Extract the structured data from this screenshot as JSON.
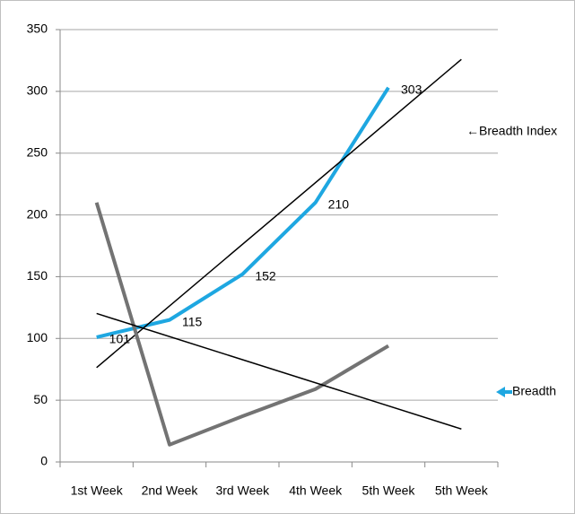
{
  "chart_data": {
    "type": "line",
    "categories": [
      "1st Week",
      "2nd Week",
      "3rd Week",
      "4th Week",
      "5th Week",
      "5th Week"
    ],
    "series": [
      {
        "name": "Breadth Index",
        "color": "#1ea7e1",
        "values": [
          101,
          115,
          152,
          210,
          303,
          null
        ],
        "data_labels": true
      },
      {
        "name": "Breadth",
        "color": "#737373",
        "values": [
          210,
          14,
          37,
          59,
          94,
          null
        ],
        "data_labels": false
      }
    ],
    "trendline": true,
    "trendline_color": "#000000",
    "trendline_forward": 1,
    "ylim": [
      0,
      350
    ],
    "yticks": [
      0,
      50,
      100,
      150,
      200,
      250,
      300,
      350
    ],
    "grid": true,
    "annotations": [
      "←Breadth Index",
      "Breadth"
    ]
  }
}
